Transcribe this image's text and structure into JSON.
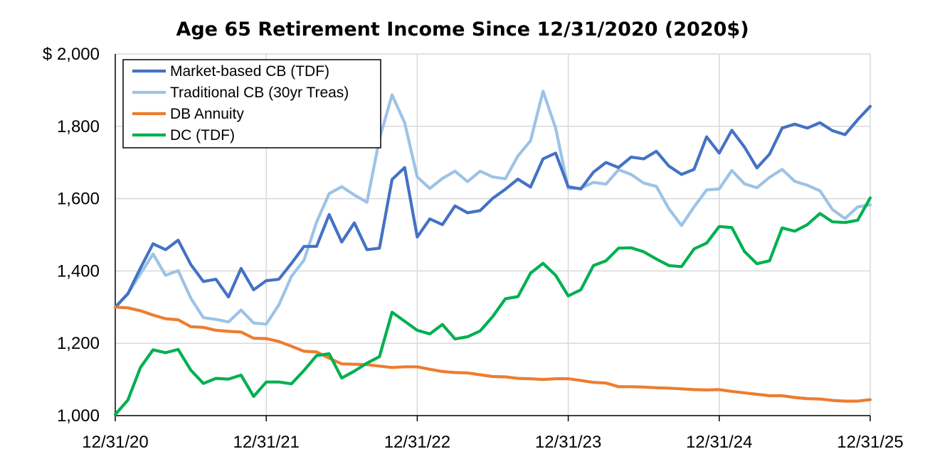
{
  "chart_data": {
    "type": "line",
    "title": "Age 65 Retirement Income Since 12/31/2020 (2020$)",
    "xlabel": "",
    "ylabel": "",
    "x_tick_labels": [
      "12/31/20",
      "12/31/21",
      "12/31/22",
      "12/31/23",
      "12/31/24",
      "12/31/25"
    ],
    "y_tick_labels": [
      "1,000",
      "1,200",
      "1,400",
      "1,600",
      "1,800",
      "$ 2,000"
    ],
    "y_ticks": [
      1000,
      1200,
      1400,
      1600,
      1800,
      2000
    ],
    "ylim": [
      1000,
      2000
    ],
    "xlim": [
      0,
      60
    ],
    "x_unit": "months since 12/31/20",
    "grid": {
      "horizontal": true,
      "vertical_at_year_ticks": true
    },
    "legend_position": "top-left",
    "series": [
      {
        "name": "Market-based CB (TDF)",
        "color": "#4472C4",
        "values": [
          1300,
          1337,
          1408,
          1475,
          1459,
          1485,
          1418,
          1371,
          1377,
          1328,
          1407,
          1348,
          1373,
          1377,
          1421,
          1468,
          1468,
          1556,
          1480,
          1533,
          1459,
          1463,
          1653,
          1686,
          1494,
          1544,
          1528,
          1580,
          1561,
          1567,
          1601,
          1626,
          1654,
          1632,
          1710,
          1726,
          1633,
          1627,
          1673,
          1700,
          1686,
          1715,
          1710,
          1731,
          1690,
          1667,
          1681,
          1771,
          1726,
          1789,
          1743,
          1685,
          1723,
          1795,
          1806,
          1795,
          1810,
          1788,
          1777,
          1818,
          1855
        ]
      },
      {
        "name": "Traditional CB (30yr Treas)",
        "color": "#9DC3E6",
        "values": [
          1300,
          1337,
          1392,
          1447,
          1388,
          1401,
          1325,
          1271,
          1266,
          1259,
          1292,
          1256,
          1253,
          1306,
          1385,
          1430,
          1535,
          1614,
          1633,
          1610,
          1590,
          1765,
          1887,
          1810,
          1660,
          1628,
          1656,
          1676,
          1647,
          1676,
          1660,
          1655,
          1718,
          1760,
          1897,
          1795,
          1628,
          1629,
          1645,
          1640,
          1680,
          1667,
          1643,
          1634,
          1572,
          1526,
          1577,
          1624,
          1627,
          1678,
          1641,
          1630,
          1659,
          1681,
          1648,
          1637,
          1622,
          1570,
          1545,
          1577,
          1583
        ]
      },
      {
        "name": "DB Annuity",
        "color": "#ED7D31",
        "values": [
          1300,
          1298,
          1290,
          1278,
          1268,
          1265,
          1246,
          1244,
          1236,
          1233,
          1231,
          1214,
          1213,
          1205,
          1192,
          1178,
          1176,
          1159,
          1143,
          1142,
          1141,
          1137,
          1133,
          1135,
          1135,
          1128,
          1122,
          1119,
          1118,
          1113,
          1108,
          1107,
          1103,
          1102,
          1100,
          1102,
          1102,
          1097,
          1092,
          1090,
          1080,
          1080,
          1079,
          1077,
          1076,
          1074,
          1072,
          1071,
          1072,
          1067,
          1063,
          1059,
          1055,
          1055,
          1050,
          1047,
          1046,
          1042,
          1040,
          1040,
          1044
        ]
      },
      {
        "name": "DC (TDF)",
        "color": "#00B050",
        "values": [
          1003,
          1043,
          1133,
          1182,
          1174,
          1183,
          1126,
          1089,
          1103,
          1101,
          1112,
          1053,
          1093,
          1093,
          1088,
          1125,
          1166,
          1171,
          1104,
          1123,
          1145,
          1163,
          1286,
          1261,
          1236,
          1226,
          1252,
          1212,
          1218,
          1234,
          1274,
          1323,
          1329,
          1394,
          1421,
          1388,
          1331,
          1348,
          1415,
          1428,
          1463,
          1464,
          1453,
          1433,
          1415,
          1412,
          1461,
          1477,
          1523,
          1520,
          1454,
          1420,
          1428,
          1519,
          1510,
          1528,
          1559,
          1536,
          1534,
          1540,
          1602
        ]
      }
    ]
  }
}
